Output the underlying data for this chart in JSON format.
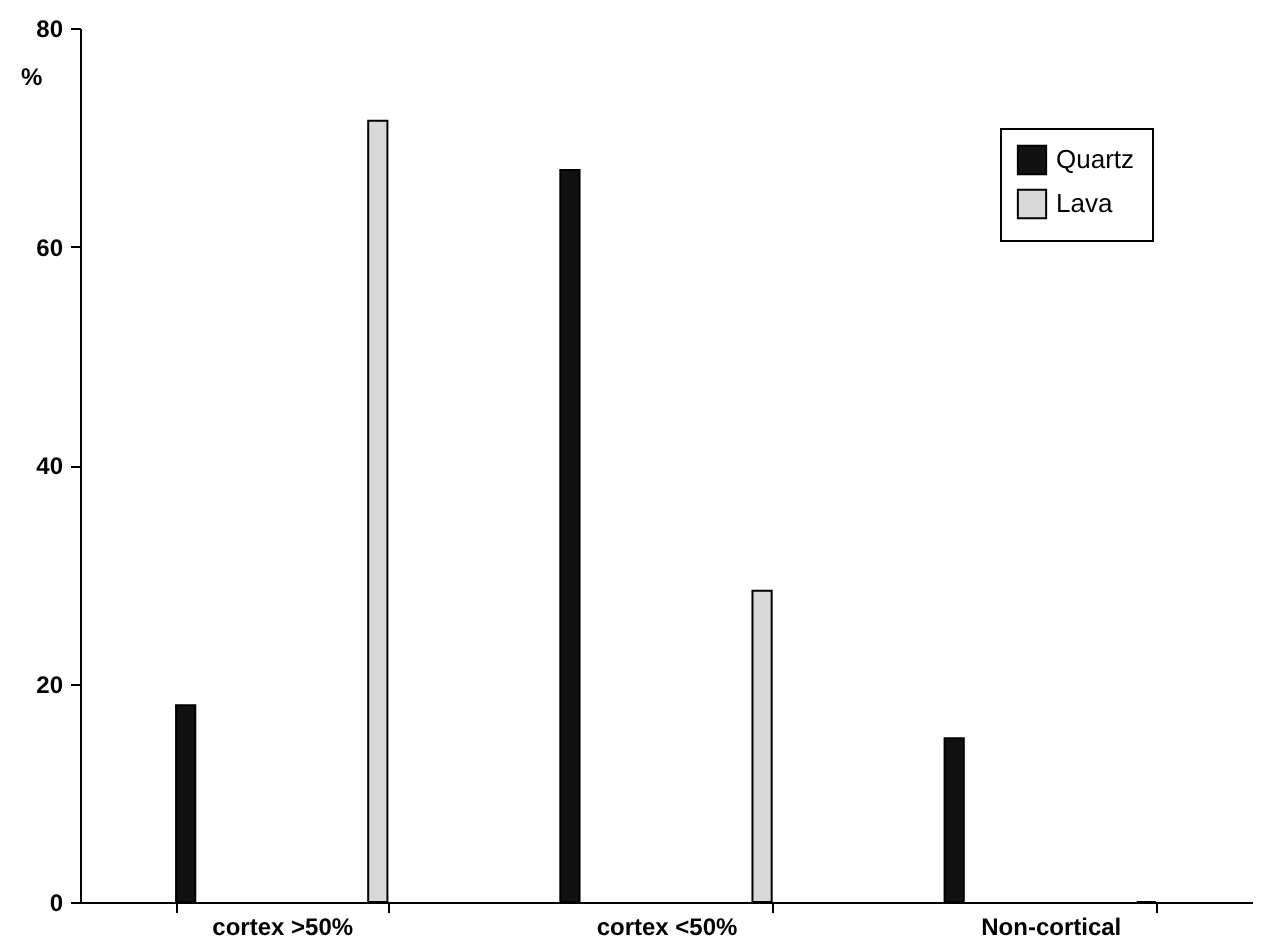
{
  "chart_data": {
    "type": "bar",
    "ylabel": "%",
    "categories": [
      "cortex >50%",
      "cortex <50%",
      "Non-cortical"
    ],
    "series": [
      {
        "name": "Quartz",
        "color": "#111111",
        "values": [
          18,
          67,
          15
        ]
      },
      {
        "name": "Lava",
        "color": "#d9d9d9",
        "values": [
          71.5,
          28.5,
          0
        ]
      }
    ],
    "ylim": [
      0,
      80
    ],
    "yticks": [
      0,
      20,
      40,
      60,
      80
    ],
    "grid": false,
    "legend": "top right"
  }
}
